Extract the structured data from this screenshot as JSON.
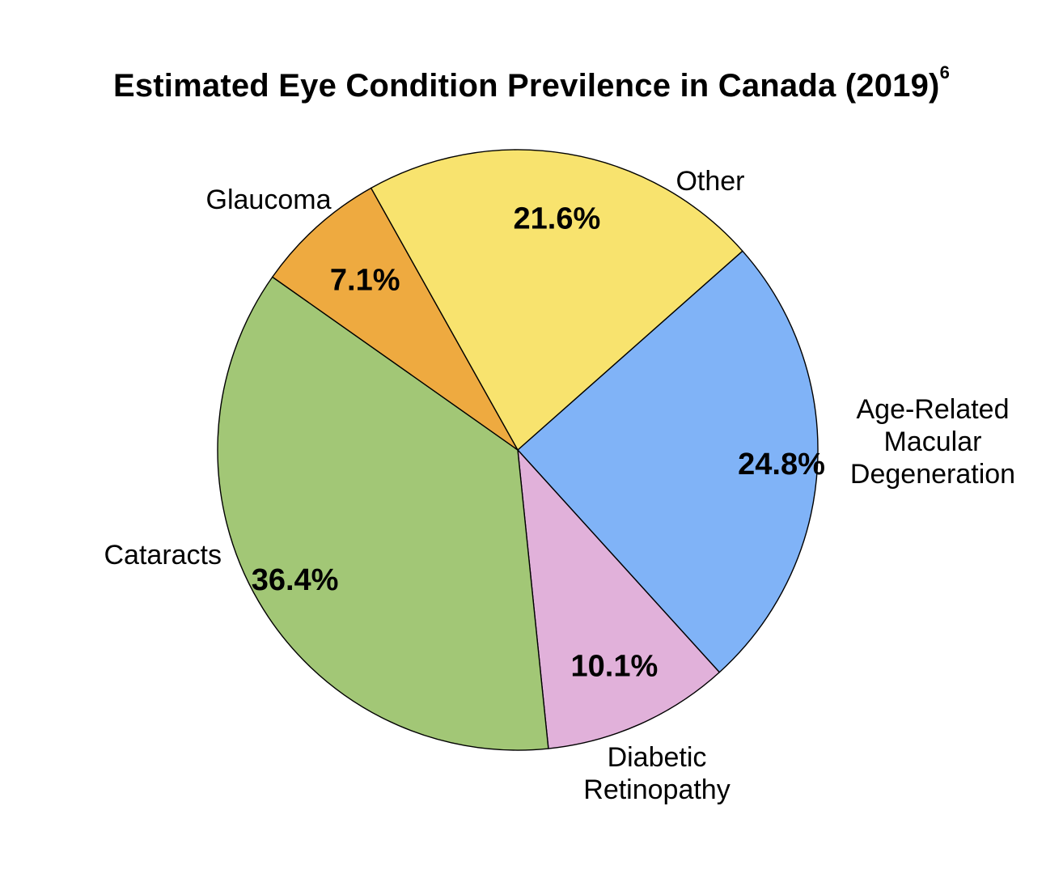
{
  "chart_data": {
    "type": "pie",
    "title": "Estimated Eye Condition Previlence in Canada (2019)",
    "title_superscript": "6",
    "slices": [
      {
        "name": "Age-Related Macular Degeneration",
        "label_lines": [
          "Age-Related",
          "Macular",
          "Degeneration"
        ],
        "value": 24.8,
        "value_label": "24.8%",
        "color": "#80b3f7"
      },
      {
        "name": "Diabetic Retinopathy",
        "label_lines": [
          "Diabetic",
          "Retinopathy"
        ],
        "value": 10.1,
        "value_label": "10.1%",
        "color": "#e1b1da"
      },
      {
        "name": "Cataracts",
        "label_lines": [
          "Cataracts"
        ],
        "value": 36.4,
        "value_label": "36.4%",
        "color": "#a2c776"
      },
      {
        "name": "Glaucoma",
        "label_lines": [
          "Glaucoma"
        ],
        "value": 7.1,
        "value_label": "7.1%",
        "color": "#eeaa40"
      },
      {
        "name": "Other",
        "label_lines": [
          "Other"
        ],
        "value": 21.6,
        "value_label": "21.6%",
        "color": "#f8e36e"
      }
    ],
    "start_direction": "upper-right, proceeding clockwise",
    "legend": "none"
  }
}
